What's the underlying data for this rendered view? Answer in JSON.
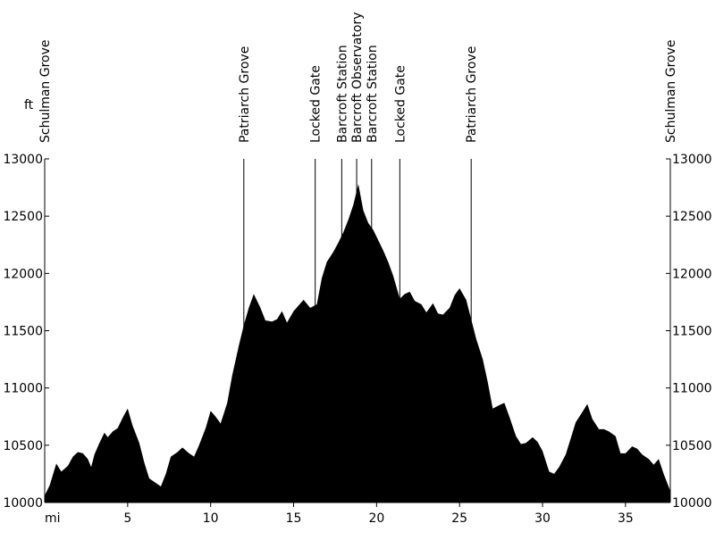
{
  "chart_data": {
    "type": "area",
    "ylabel": "ft",
    "xlabel": "mi",
    "xlim": [
      0,
      37.7
    ],
    "ylim": [
      10000,
      13000
    ],
    "x_ticks": [
      5,
      10,
      15,
      20,
      25,
      30,
      35
    ],
    "x_tick_labels": [
      "5",
      "10",
      "15",
      "20",
      "25",
      "30",
      "35"
    ],
    "y_ticks": [
      10000,
      10500,
      11000,
      11500,
      12000,
      12500,
      13000
    ],
    "y_tick_labels": [
      "10000",
      "10500",
      "11000",
      "11500",
      "12000",
      "12500",
      "13000"
    ],
    "waypoints": [
      {
        "label": "Schulman Grove",
        "mile": 0
      },
      {
        "label": "Patriarch Grove",
        "mile": 12.0
      },
      {
        "label": "Locked Gate",
        "mile": 16.3
      },
      {
        "label": "Barcroft Station",
        "mile": 17.9
      },
      {
        "label": "Barcroft Observatory",
        "mile": 18.8
      },
      {
        "label": "Barcroft Station",
        "mile": 19.7
      },
      {
        "label": "Locked Gate",
        "mile": 21.4
      },
      {
        "label": "Patriarch Grove",
        "mile": 25.7
      },
      {
        "label": "Schulman Grove",
        "mile": 37.7
      }
    ],
    "x": [
      0,
      0.3,
      0.7,
      1.0,
      1.4,
      1.7,
      2.0,
      2.3,
      2.6,
      2.8,
      3.0,
      3.3,
      3.6,
      3.8,
      4.1,
      4.4,
      4.7,
      5.0,
      5.3,
      5.7,
      6.0,
      6.3,
      6.7,
      7.0,
      7.3,
      7.6,
      8.0,
      8.3,
      8.7,
      9.0,
      9.3,
      9.7,
      10.0,
      10.3,
      10.6,
      11.0,
      11.3,
      11.7,
      12.0,
      12.3,
      12.6,
      13.0,
      13.3,
      13.7,
      14.0,
      14.3,
      14.6,
      15.0,
      15.3,
      15.6,
      16.0,
      16.4,
      16.7,
      17.0,
      17.4,
      17.7,
      18.0,
      18.3,
      18.6,
      18.9,
      19.2,
      19.5,
      19.8,
      20.1,
      20.4,
      20.7,
      21.0,
      21.4,
      21.7,
      22.0,
      22.3,
      22.7,
      23.0,
      23.4,
      23.7,
      24.0,
      24.4,
      24.7,
      25.0,
      25.4,
      25.7,
      26.0,
      26.4,
      26.7,
      27.0,
      27.4,
      27.7,
      28.0,
      28.4,
      28.7,
      29.0,
      29.4,
      29.7,
      30.0,
      30.4,
      30.7,
      31.0,
      31.4,
      31.7,
      32.0,
      32.4,
      32.7,
      33.0,
      33.4,
      33.7,
      34.0,
      34.4,
      34.7,
      35.0,
      35.4,
      35.7,
      36.0,
      36.4,
      36.7,
      37.0,
      37.3,
      37.7
    ],
    "values": [
      10060,
      10150,
      10340,
      10270,
      10320,
      10400,
      10440,
      10430,
      10380,
      10310,
      10420,
      10520,
      10610,
      10570,
      10620,
      10650,
      10740,
      10820,
      10670,
      10520,
      10350,
      10210,
      10170,
      10140,
      10250,
      10400,
      10440,
      10480,
      10430,
      10400,
      10500,
      10650,
      10800,
      10750,
      10690,
      10870,
      11110,
      11370,
      11550,
      11700,
      11820,
      11700,
      11590,
      11580,
      11600,
      11670,
      11570,
      11670,
      11720,
      11770,
      11700,
      11730,
      11960,
      12100,
      12190,
      12270,
      12360,
      12470,
      12600,
      12780,
      12550,
      12440,
      12380,
      12290,
      12200,
      12100,
      11980,
      11780,
      11820,
      11840,
      11760,
      11730,
      11660,
      11740,
      11650,
      11640,
      11700,
      11810,
      11870,
      11770,
      11600,
      11430,
      11250,
      11050,
      10820,
      10850,
      10870,
      10750,
      10580,
      10510,
      10520,
      10570,
      10530,
      10450,
      10270,
      10250,
      10310,
      10420,
      10560,
      10700,
      10790,
      10860,
      10730,
      10640,
      10640,
      10620,
      10580,
      10430,
      10430,
      10490,
      10470,
      10420,
      10380,
      10330,
      10380,
      10250,
      10100
    ]
  }
}
